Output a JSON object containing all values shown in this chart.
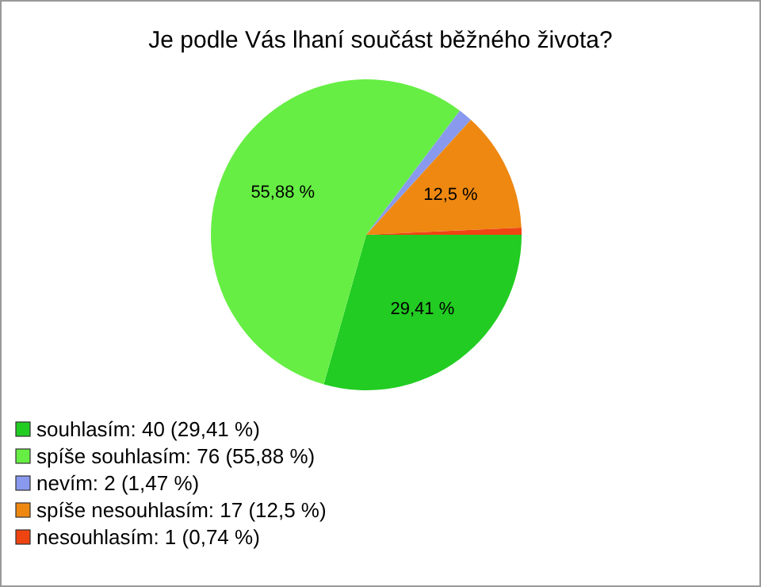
{
  "chart_data": {
    "type": "pie",
    "title": "Je podle Vás lhaní součást běžného života?",
    "categories": [
      "souhlasím: 40 (29,41 %)",
      "spíše souhlasím: 76 (55,88 %)",
      "nevím: 2 (1,47 %)",
      "spíše nesouhlasím: 17 (12,5 %)",
      "nesouhlasím: 1 (0,74 %)"
    ],
    "values": [
      29.41,
      55.88,
      1.47,
      12.5,
      0.74
    ],
    "colors": [
      "#22cc22",
      "#66ee44",
      "#8899ee",
      "#ee8811",
      "#ee4411"
    ],
    "value_labels": [
      "29,41 %",
      "55,88 %",
      null,
      "12,5 %",
      null
    ],
    "legend": "bottom left"
  }
}
